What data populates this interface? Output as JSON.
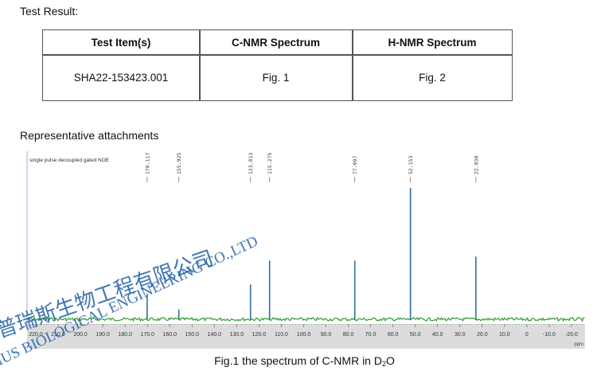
{
  "document": {
    "heading": "Test Result:",
    "table": {
      "headers": [
        "Test Item(s)",
        "C-NMR Spectrum",
        "H-NMR Spectrum"
      ],
      "rows": [
        [
          "SHA22-153423.001",
          "Fig. 1",
          "Fig. 2"
        ]
      ]
    },
    "section_title": "Representative attachments",
    "caption": {
      "prefix": "Fig.1   the spectrum of C-NMR in D",
      "subscript": "2",
      "suffix": "O"
    },
    "watermark": {
      "chinese": "普瑞斯生物工程有限公司",
      "english": "RIUS BIOLOGICAL ENGINEERING CO.,LTD",
      "color": "#1f5fa8"
    }
  },
  "chart_data": {
    "type": "line",
    "title": "single pulse decoupled gated NOE",
    "xlabel": "ppm",
    "ylabel": "",
    "xlim": [
      220.0,
      -20.0
    ],
    "x_ticks": [
      "220.0",
      "210.0",
      "200.0",
      "190.0",
      "180.0",
      "170.0",
      "160.0",
      "150.0",
      "140.0",
      "130.0",
      "120.0",
      "110.0",
      "100.0",
      "90.0",
      "80.0",
      "70.0",
      "60.0",
      "50.0",
      "40.0",
      "30.0",
      "20.0",
      "10.0",
      "0",
      "-10.0",
      "-20.0"
    ],
    "grid": false,
    "legend": null,
    "peaks": [
      {
        "ppm": 170.117,
        "label": "170.117",
        "rel_height": 0.2
      },
      {
        "ppm": 155.925,
        "label": "155.925",
        "rel_height": 0.08
      },
      {
        "ppm": 123.813,
        "label": "123.813",
        "rel_height": 0.27
      },
      {
        "ppm": 115.275,
        "label": "115.275",
        "rel_height": 0.45
      },
      {
        "ppm": 77.097,
        "label": "77.097",
        "rel_height": 0.45
      },
      {
        "ppm": 52.153,
        "label": "52.153",
        "rel_height": 1.0
      },
      {
        "ppm": 22.83,
        "label": "22.830",
        "rel_height": 0.48
      }
    ],
    "colors": {
      "peak": "#2e6f9e",
      "baseline_noise": "#2e9a2e",
      "axis_bg": "#d9d9d9",
      "ref_line": "#b8c8e8"
    }
  }
}
